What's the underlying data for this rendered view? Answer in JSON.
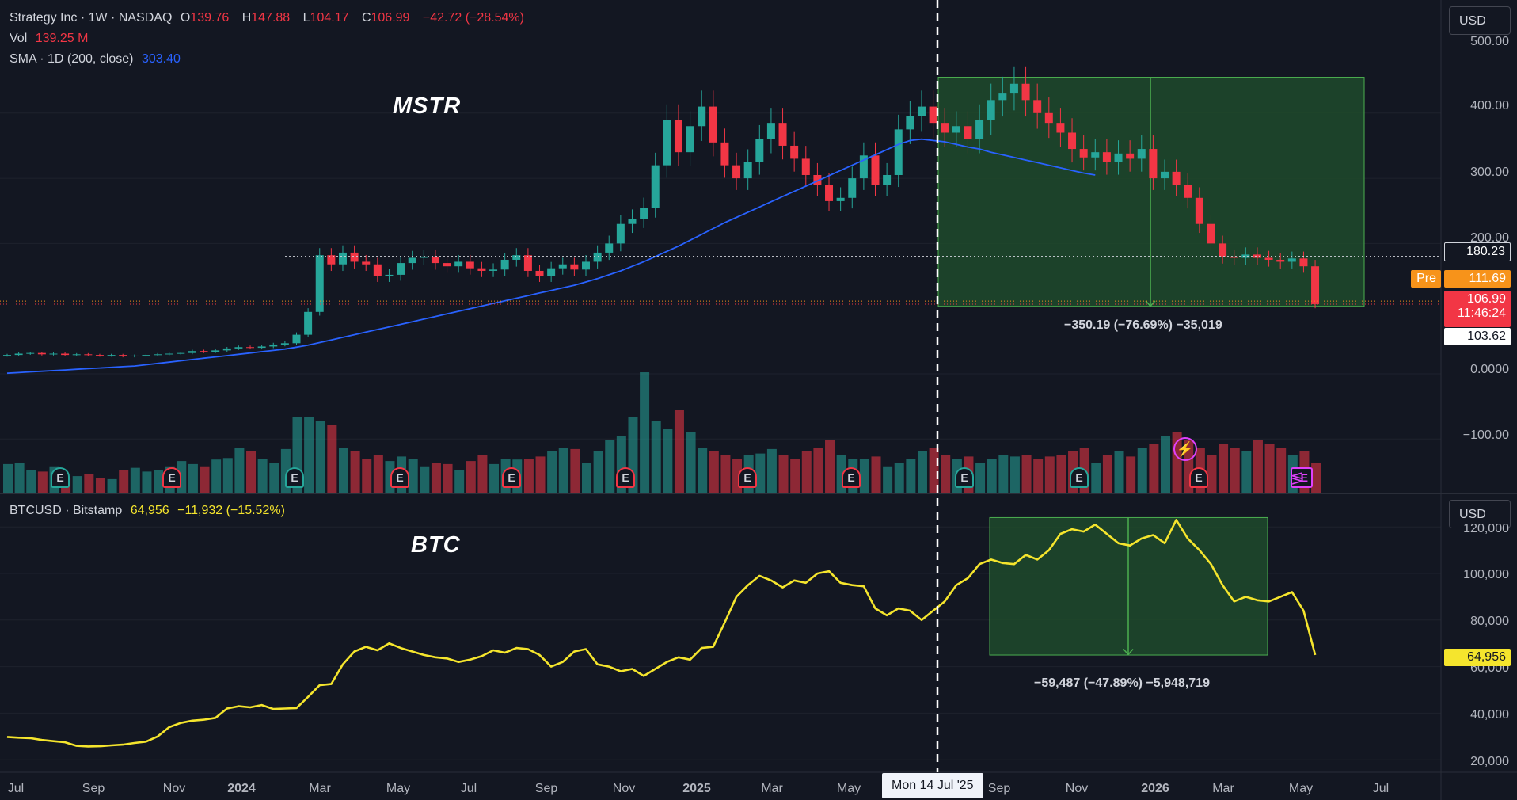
{
  "mstr_header": {
    "symbol": "Strategy Inc · 1W · NASDAQ",
    "o_label": "O",
    "o_val": "139.76",
    "h_label": "H",
    "h_val": "147.88",
    "l_label": "L",
    "l_val": "104.17",
    "c_label": "C",
    "c_val": "106.99",
    "change": "−42.72 (−28.54%)",
    "vol_label": "Vol",
    "vol_val": "139.25 M",
    "sma_label": "SMA · 1D (200, close)",
    "sma_val": "303.40"
  },
  "btc_header": {
    "symbol": "BTCUSD · Bitstamp",
    "price": "64,956",
    "change": "−11,932 (−15.52%)"
  },
  "currency_button": "USD",
  "annotations": {
    "mstr": "MSTR",
    "btc": "BTC"
  },
  "measure_mstr": "−350.19 (−76.69%) −35,019",
  "measure_btc": "−59,487 (−47.89%) −5,948,719",
  "tags": {
    "line_180": "180.23",
    "pre_label": "Pre",
    "pre_val": "111.69",
    "last_price": "106.99",
    "countdown": "11:46:24",
    "low_103": "103.62",
    "btc_last": "64,956"
  },
  "crosshair_time": "Mon 14 Jul '25",
  "mstr_axis": [
    "500.00",
    "400.00",
    "300.00",
    "200.00",
    "0.0000",
    "−100.00"
  ],
  "btc_axis": [
    "120,000",
    "100,000",
    "80,000",
    "60,000",
    "40,000",
    "20,000"
  ],
  "x_axis": [
    "Jul",
    "Sep",
    "Nov",
    "2024",
    "Mar",
    "May",
    "Jul",
    "Sep",
    "Nov",
    "2025",
    "Mar",
    "May",
    "Sep",
    "Nov",
    "2026",
    "Mar",
    "May",
    "Jul"
  ],
  "earnings_marker": "E",
  "colors": {
    "up": "#26a69a",
    "down": "#f23645",
    "sma": "#2962ff",
    "btc_line": "#f5e52d",
    "zone": "#1f4a2c"
  },
  "chart_data": [
    {
      "type": "candlestick",
      "title": "Strategy Inc · 1W · NASDAQ",
      "ylim": [
        -150,
        520
      ],
      "weekly_close": [
        29,
        31,
        32,
        30,
        31,
        29,
        30,
        29,
        28,
        29,
        27,
        28,
        29,
        30,
        31,
        32,
        35,
        34,
        36,
        39,
        41,
        40,
        42,
        45,
        47,
        60,
        95,
        182,
        168,
        186,
        172,
        168,
        150,
        152,
        170,
        178,
        180,
        170,
        165,
        172,
        162,
        158,
        160,
        175,
        182,
        158,
        150,
        162,
        168,
        160,
        172,
        186,
        200,
        230,
        238,
        255,
        320,
        390,
        340,
        380,
        410,
        355,
        320,
        300,
        325,
        360,
        385,
        350,
        330,
        305,
        290,
        265,
        270,
        300,
        335,
        290,
        305,
        375,
        395,
        410,
        385,
        370,
        380,
        360,
        390,
        420,
        430,
        445,
        420,
        400,
        385,
        370,
        345,
        332,
        340,
        325,
        338,
        330,
        345,
        300,
        310,
        290,
        270,
        230,
        200,
        180,
        178,
        183,
        178,
        175,
        172,
        177,
        165,
        107
      ],
      "sma200": [
        1,
        2,
        3,
        4,
        5,
        6,
        7,
        8,
        9,
        10,
        11,
        12,
        14,
        16,
        18,
        20,
        22,
        24,
        26,
        28,
        30,
        32,
        34,
        36,
        38,
        41,
        44,
        48,
        52,
        56,
        60,
        64,
        68,
        72,
        76,
        80,
        84,
        88,
        92,
        96,
        100,
        104,
        108,
        112,
        116,
        120,
        124,
        128,
        132,
        136,
        141,
        146,
        152,
        158,
        165,
        172,
        180,
        188,
        196,
        205,
        214,
        223,
        232,
        240,
        248,
        256,
        264,
        272,
        280,
        288,
        296,
        304,
        312,
        320,
        328,
        336,
        344,
        352,
        358,
        360,
        358,
        356,
        352,
        348,
        345,
        340,
        336,
        332,
        328,
        324,
        320,
        316,
        312,
        308,
        305
      ],
      "volume_relative": [
        38,
        40,
        30,
        28,
        35,
        20,
        22,
        25,
        20,
        18,
        30,
        33,
        28,
        30,
        35,
        42,
        38,
        35,
        44,
        46,
        60,
        55,
        45,
        40,
        58,
        100,
        100,
        95,
        90,
        60,
        55,
        45,
        50,
        42,
        48,
        45,
        35,
        40,
        38,
        30,
        42,
        50,
        38,
        45,
        44,
        45,
        48,
        55,
        60,
        58,
        40,
        55,
        70,
        75,
        100,
        160,
        95,
        85,
        110,
        80,
        60,
        55,
        50,
        45,
        50,
        52,
        58,
        50,
        45,
        55,
        60,
        70,
        50,
        45,
        45,
        48,
        35,
        40,
        45,
        55,
        60,
        50,
        45,
        48,
        40,
        45,
        50,
        48,
        50,
        45,
        48,
        50,
        55,
        60,
        40,
        50,
        55,
        48,
        60,
        65,
        75,
        80,
        70,
        60,
        50,
        65,
        60,
        55,
        70,
        65,
        60,
        50,
        55,
        40
      ]
    },
    {
      "type": "line",
      "title": "BTCUSD · Bitstamp",
      "ylim": [
        15000,
        130000
      ],
      "weekly_close": [
        29800,
        29500,
        29300,
        28500,
        28000,
        27500,
        26000,
        25700,
        25800,
        26200,
        26500,
        27200,
        27800,
        30000,
        34000,
        35800,
        36800,
        37200,
        38000,
        42000,
        43000,
        42500,
        43500,
        41800,
        42000,
        42200,
        47000,
        52000,
        52500,
        61000,
        66500,
        68500,
        67000,
        70000,
        68000,
        66500,
        65000,
        64000,
        63500,
        62000,
        63000,
        64500,
        67000,
        66000,
        68000,
        67500,
        65000,
        60000,
        62000,
        66500,
        67500,
        61000,
        60000,
        58000,
        59000,
        56000,
        59000,
        62000,
        64000,
        63000,
        68000,
        68500,
        79000,
        90000,
        95000,
        99000,
        97000,
        94000,
        97000,
        96000,
        100000,
        101000,
        96000,
        95000,
        94500,
        85000,
        82000,
        85000,
        84000,
        80000,
        84000,
        88000,
        95000,
        98000,
        104000,
        106000,
        104500,
        104000,
        108000,
        106000,
        110000,
        117000,
        119000,
        118000,
        121000,
        117000,
        113000,
        112000,
        115000,
        116500,
        113000,
        123000,
        115000,
        110000,
        104000,
        95000,
        88000,
        90000,
        88500,
        88000,
        90000,
        92000,
        84000,
        65000
      ]
    }
  ]
}
